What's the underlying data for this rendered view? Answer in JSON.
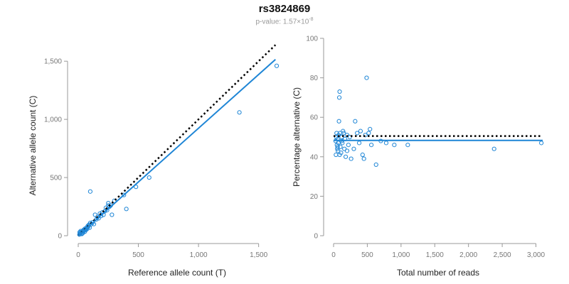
{
  "title": "rs3824869",
  "subtitle": {
    "prefix": "p-value: 1.57×10",
    "exponent": "-8"
  },
  "colors": {
    "points": "#1f86d6",
    "fit_line": "#1f86d6",
    "reference_line": "#000000",
    "axis": "#999999",
    "tick_text": "#777777"
  },
  "chart_data": [
    {
      "type": "scatter",
      "id": "allele-counts",
      "xlabel": "Reference allele count (T)",
      "ylabel": "Alternative allele count (C)",
      "xlim": [
        0,
        1650
      ],
      "ylim": [
        0,
        1550
      ],
      "xticks": [
        0,
        500,
        1000,
        1500
      ],
      "xtick_labels": [
        "0",
        "500",
        "1,000",
        "1,500"
      ],
      "yticks": [
        0,
        500,
        1000,
        1500
      ],
      "ytick_labels": [
        "0",
        "500",
        "1,000",
        "1,500"
      ],
      "points": [
        [
          10,
          10
        ],
        [
          15,
          20
        ],
        [
          20,
          25
        ],
        [
          25,
          30
        ],
        [
          30,
          20
        ],
        [
          35,
          40
        ],
        [
          40,
          35
        ],
        [
          45,
          50
        ],
        [
          50,
          45
        ],
        [
          55,
          60
        ],
        [
          60,
          55
        ],
        [
          65,
          50
        ],
        [
          70,
          70
        ],
        [
          75,
          60
        ],
        [
          80,
          85
        ],
        [
          85,
          80
        ],
        [
          90,
          95
        ],
        [
          95,
          70
        ],
        [
          100,
          110
        ],
        [
          110,
          100
        ],
        [
          120,
          115
        ],
        [
          130,
          100
        ],
        [
          140,
          180
        ],
        [
          150,
          140
        ],
        [
          160,
          160
        ],
        [
          170,
          150
        ],
        [
          180,
          190
        ],
        [
          190,
          170
        ],
        [
          200,
          200
        ],
        [
          210,
          180
        ],
        [
          220,
          210
        ],
        [
          230,
          240
        ],
        [
          240,
          220
        ],
        [
          250,
          260
        ],
        [
          250,
          280
        ],
        [
          260,
          250
        ],
        [
          270,
          260
        ],
        [
          280,
          180
        ],
        [
          300,
          300
        ],
        [
          100,
          380
        ],
        [
          380,
          350
        ],
        [
          400,
          230
        ],
        [
          480,
          420
        ],
        [
          590,
          500
        ],
        [
          1340,
          1060
        ],
        [
          1650,
          1460
        ],
        [
          20,
          40
        ],
        [
          30,
          15
        ],
        [
          40,
          25
        ],
        [
          12,
          30
        ],
        [
          55,
          35
        ]
      ],
      "fit_line": [
        [
          0,
          0
        ],
        [
          1640,
          1515
        ]
      ],
      "reference_line": [
        [
          0,
          0
        ],
        [
          1640,
          1640
        ]
      ]
    },
    {
      "type": "scatter",
      "id": "percentage-alternative",
      "xlabel": "Total number of reads",
      "ylabel": "Percentage alternative (C)",
      "xlim": [
        0,
        3100
      ],
      "ylim": [
        0,
        100
      ],
      "xticks": [
        0,
        500,
        1000,
        1500,
        2000,
        2500,
        3000
      ],
      "xtick_labels": [
        "0",
        "500",
        "1,000",
        "1,500",
        "2,000",
        "2,500",
        "3,000"
      ],
      "yticks": [
        0,
        20,
        40,
        60,
        80,
        100
      ],
      "ytick_labels": [
        "0",
        "20",
        "40",
        "60",
        "80",
        "100"
      ],
      "points": [
        [
          30,
          48
        ],
        [
          35,
          41
        ],
        [
          40,
          50
        ],
        [
          45,
          52
        ],
        [
          50,
          46
        ],
        [
          55,
          44
        ],
        [
          60,
          49
        ],
        [
          65,
          43
        ],
        [
          70,
          47
        ],
        [
          75,
          51
        ],
        [
          80,
          58
        ],
        [
          85,
          70
        ],
        [
          90,
          73
        ],
        [
          95,
          52
        ],
        [
          100,
          45
        ],
        [
          110,
          42
        ],
        [
          120,
          50
        ],
        [
          130,
          47
        ],
        [
          140,
          53
        ],
        [
          150,
          52
        ],
        [
          160,
          44
        ],
        [
          170,
          49
        ],
        [
          180,
          40
        ],
        [
          200,
          51
        ],
        [
          220,
          46
        ],
        [
          240,
          50
        ],
        [
          260,
          39
        ],
        [
          300,
          44
        ],
        [
          320,
          58
        ],
        [
          350,
          52
        ],
        [
          380,
          47
        ],
        [
          400,
          53
        ],
        [
          430,
          41
        ],
        [
          450,
          39
        ],
        [
          470,
          51
        ],
        [
          490,
          80
        ],
        [
          520,
          52
        ],
        [
          540,
          54
        ],
        [
          560,
          46
        ],
        [
          630,
          36
        ],
        [
          700,
          48
        ],
        [
          780,
          47
        ],
        [
          900,
          46
        ],
        [
          1100,
          46
        ],
        [
          2380,
          44
        ],
        [
          3080,
          47
        ],
        [
          60,
          45
        ],
        [
          90,
          41
        ],
        [
          120,
          48
        ],
        [
          200,
          43
        ]
      ],
      "fit_line": [
        [
          0,
          48.3
        ],
        [
          3100,
          48.3
        ]
      ],
      "reference_line": [
        [
          0,
          50.5
        ],
        [
          3100,
          50.5
        ]
      ]
    }
  ]
}
